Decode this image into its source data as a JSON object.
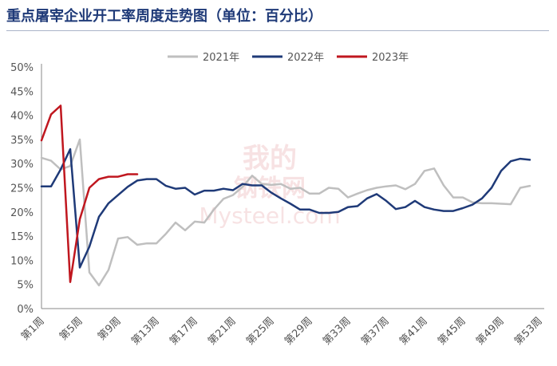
{
  "chart_data": {
    "type": "line",
    "title": "重点屠宰企业开工率周度走势图（单位：百分比）",
    "xlabel": "",
    "ylabel": "",
    "ylim": [
      0,
      50
    ],
    "yticks": [
      "0%",
      "5%",
      "10%",
      "15%",
      "20%",
      "25%",
      "30%",
      "35%",
      "40%",
      "45%",
      "50%"
    ],
    "xticks": [
      "第1周",
      "第5周",
      "第9周",
      "第13周",
      "第17周",
      "第21周",
      "第25周",
      "第29周",
      "第33周",
      "第37周",
      "第41周",
      "第45周",
      "第49周",
      "第53周"
    ],
    "xtick_weeks": [
      1,
      5,
      9,
      13,
      17,
      21,
      25,
      29,
      33,
      37,
      41,
      45,
      49,
      53
    ],
    "x_weeks_range": [
      1,
      53
    ],
    "grid": false,
    "legend": "top",
    "watermark": [
      "我的",
      "钢铁网",
      "Mysteel.com"
    ],
    "series": [
      {
        "name": "2021年",
        "color": "#bfbfbf",
        "x": [
          1,
          2,
          3,
          4,
          5,
          6,
          7,
          8,
          9,
          10,
          11,
          12,
          13,
          14,
          15,
          16,
          17,
          18,
          19,
          20,
          21,
          22,
          23,
          24,
          25,
          26,
          27,
          28,
          29,
          30,
          31,
          32,
          33,
          34,
          35,
          36,
          37,
          38,
          39,
          40,
          41,
          42,
          43,
          44,
          45,
          46,
          47,
          48,
          49,
          50,
          51,
          52,
          53
        ],
        "values": [
          31.2,
          30.6,
          28.8,
          29.5,
          35.0,
          7.5,
          4.8,
          8.0,
          14.5,
          14.8,
          13.2,
          13.5,
          13.5,
          15.5,
          17.8,
          16.2,
          18.0,
          17.8,
          20.5,
          22.7,
          23.5,
          25.2,
          27.5,
          25.8,
          25.6,
          25.8,
          24.8,
          25.0,
          23.8,
          23.8,
          25.0,
          24.8,
          23.0,
          23.8,
          24.5,
          25.0,
          25.3,
          25.5,
          24.7,
          25.8,
          28.5,
          29.0,
          25.5,
          23.0,
          23.0,
          22.0,
          21.8,
          21.8,
          21.7,
          21.6,
          25.0,
          25.4,
          null
        ],
        "width": 2.5
      },
      {
        "name": "2022年",
        "color": "#1f3a78",
        "x": [
          1,
          2,
          3,
          4,
          5,
          6,
          7,
          8,
          9,
          10,
          11,
          12,
          13,
          14,
          15,
          16,
          17,
          18,
          19,
          20,
          21,
          22,
          23,
          24,
          25,
          26,
          27,
          28,
          29,
          30,
          31,
          32,
          33,
          34,
          35,
          36,
          37,
          38,
          39,
          40,
          41,
          42,
          43,
          44,
          45,
          46,
          47,
          48,
          49,
          50,
          51,
          52,
          53
        ],
        "values": [
          25.3,
          25.3,
          28.8,
          33.0,
          8.5,
          12.8,
          19.0,
          21.8,
          23.5,
          25.2,
          26.5,
          26.8,
          26.8,
          25.4,
          24.8,
          25.0,
          23.6,
          24.4,
          24.4,
          24.8,
          24.5,
          25.8,
          25.5,
          25.5,
          24.0,
          22.8,
          21.7,
          20.5,
          20.5,
          19.8,
          19.8,
          20.0,
          21.0,
          21.2,
          22.8,
          23.7,
          22.3,
          20.6,
          21.0,
          22.3,
          21.0,
          20.5,
          20.2,
          20.2,
          20.8,
          21.5,
          22.8,
          25.0,
          28.5,
          30.5,
          31.0,
          30.8,
          null
        ],
        "width": 2.5
      },
      {
        "name": "2023年",
        "color": "#c0171f",
        "x": [
          1,
          2,
          3,
          4,
          5,
          6,
          7,
          8,
          9,
          10,
          11
        ],
        "values": [
          34.8,
          40.2,
          42.0,
          5.5,
          18.5,
          25.0,
          26.8,
          27.3,
          27.3,
          27.8,
          27.8
        ],
        "width": 2.5
      }
    ]
  }
}
